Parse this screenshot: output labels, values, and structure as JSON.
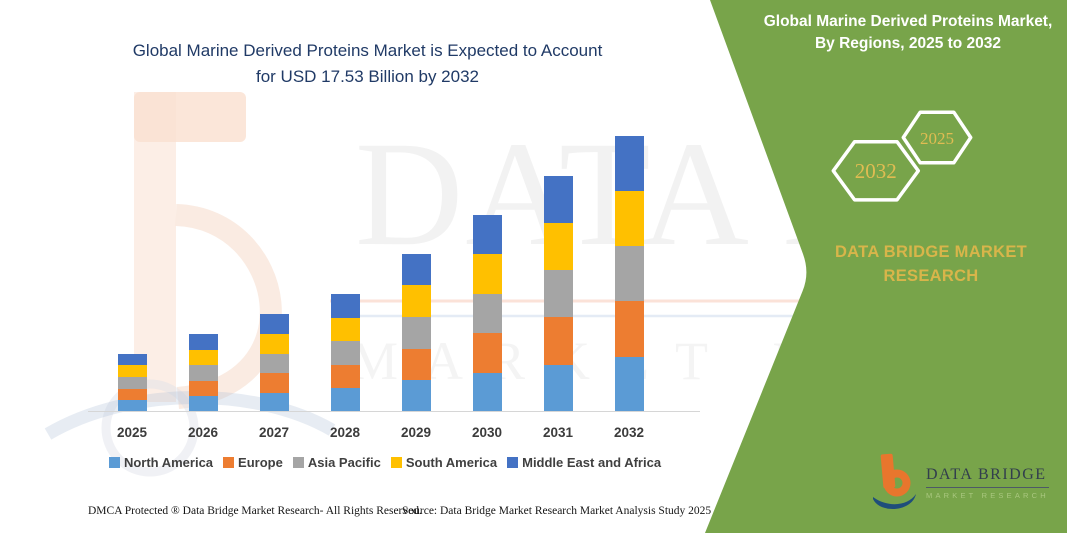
{
  "chart": {
    "title_lines": [
      "Global Marine Derived Proteins Market is Expected to Account",
      "for USD 17.53 Billion by 2032"
    ],
    "title_color": "#203A66"
  },
  "chart_data": {
    "type": "bar",
    "stacked": true,
    "title": "Global Marine Derived Proteins Market is Expected to Account for USD 17.53 Billion by 2032",
    "unit": "USD Billion",
    "categories": [
      "2025",
      "2026",
      "2027",
      "2028",
      "2029",
      "2030",
      "2031",
      "2032"
    ],
    "series": [
      {
        "name": "North America",
        "color": "#5B9BD5",
        "values": [
          0.74,
          0.99,
          1.24,
          1.5,
          2.01,
          2.5,
          3.0,
          3.51
        ]
      },
      {
        "name": "Europe",
        "color": "#ED7D31",
        "values": [
          0.74,
          0.99,
          1.24,
          1.5,
          2.01,
          2.5,
          3.0,
          3.51
        ]
      },
      {
        "name": "Asia Pacific",
        "color": "#A5A5A5",
        "values": [
          0.74,
          0.99,
          1.24,
          1.5,
          2.01,
          2.5,
          3.0,
          3.51
        ]
      },
      {
        "name": "South America",
        "color": "#FFC000",
        "values": [
          0.74,
          0.99,
          1.24,
          1.5,
          2.01,
          2.5,
          3.0,
          3.51
        ]
      },
      {
        "name": "Middle East and Africa",
        "color": "#4472C4",
        "values": [
          0.74,
          0.99,
          1.26,
          1.49,
          1.99,
          2.5,
          3.0,
          3.49
        ]
      }
    ],
    "totals": [
      3.7,
      4.95,
      6.22,
      7.49,
      10.03,
      12.5,
      15.0,
      17.53
    ],
    "ylim": [
      0,
      18
    ],
    "gridlines": false,
    "axis_visible": "baseline-only",
    "legend_position": "bottom",
    "annotation": "USD 17.53 Billion by 2032"
  },
  "right_panel": {
    "title": "Global Marine Derived Proteins Market, By Regions, 2025 to 2032",
    "hexagon_back": "2032",
    "hexagon_front": "2025",
    "brand_text": "DATA BRIDGE MARKET RESEARCH",
    "colors": {
      "panel_green": "#78A44A",
      "gold": "#D8B54A",
      "hex_digit_gold": "#E0BC52"
    }
  },
  "logo": {
    "name_top": "DATA BRIDGE",
    "name_bottom": "MARKET RESEARCH"
  },
  "watermark": {
    "line1": "DATA BRIDGE",
    "line2": "MARKET RESEARCH"
  },
  "footer": {
    "left": "DMCA Protected ® Data Bridge Market Research-  All Rights Reserved.",
    "right": "Source: Data Bridge Market Research  Market Analysis Study 2025"
  }
}
